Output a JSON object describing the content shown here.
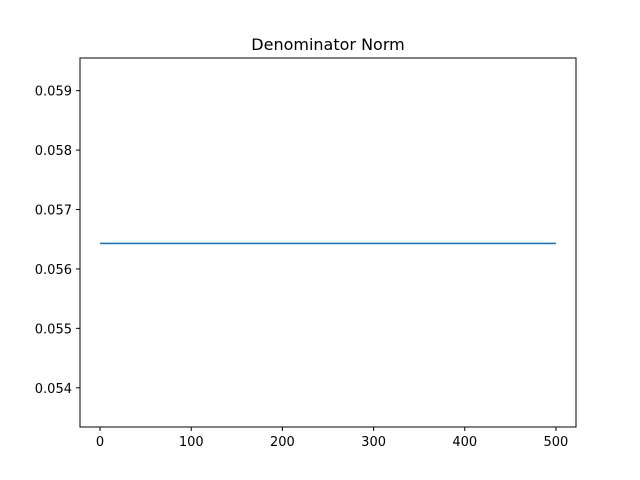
{
  "chart_data": {
    "type": "line",
    "title": "Denominator Norm",
    "xlabel": "",
    "ylabel": "",
    "xlim": [
      -22,
      522
    ],
    "ylim": [
      0.05334,
      0.05955
    ],
    "x_ticks": [
      0,
      100,
      200,
      300,
      400,
      500
    ],
    "x_tick_labels": [
      "0",
      "100",
      "200",
      "300",
      "400",
      "500"
    ],
    "y_ticks": [
      0.054,
      0.055,
      0.056,
      0.057,
      0.058,
      0.059
    ],
    "y_tick_labels": [
      "0.054",
      "0.055",
      "0.056",
      "0.057",
      "0.058",
      "0.059"
    ],
    "grid": false,
    "legend": false,
    "series": [
      {
        "color": "#1f77b4",
        "x": [
          0,
          500
        ],
        "y": [
          0.05643,
          0.05643
        ]
      }
    ]
  }
}
